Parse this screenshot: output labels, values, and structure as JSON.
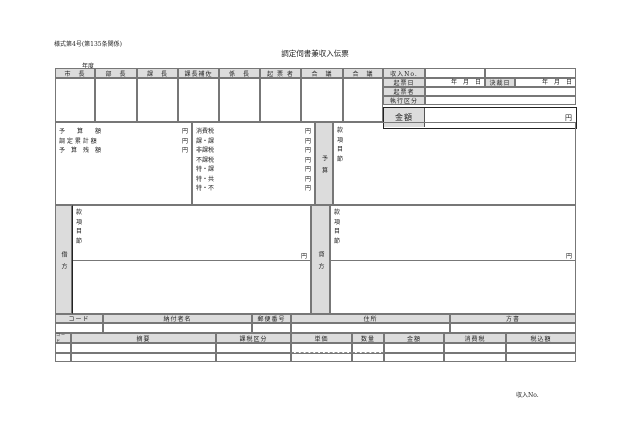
{
  "form_number": "様式第4号(第135条関係)",
  "title": "調定伺書兼収入伝票",
  "fiscal_year": "年度",
  "approvals": [
    "市　長",
    "部　長",
    "課　長",
    "課長補佐",
    "係　長",
    "起 票 者",
    "合　議",
    "合　議"
  ],
  "info": {
    "receipt_no": "収入No.",
    "draft_date": "起票日",
    "date_blank": "年　月　日",
    "decision_date": "決裁日",
    "drafter": "起票者",
    "execution_category": "執行区分",
    "amount": "金額",
    "yen": "円"
  },
  "budget": {
    "labels": [
      "予　　算　　額",
      "調 定 累 計 額",
      "予　算　残　額"
    ],
    "tax_labels": [
      "消費税",
      "課・課",
      "非課税",
      "不課税",
      "特・課",
      "特・共",
      "特・不"
    ],
    "side": "予　算",
    "account": "款\n項\n目\n節"
  },
  "debit": {
    "side": "借　方"
  },
  "credit": {
    "side": "貸　方"
  },
  "payer_headers": [
    "コード",
    "納付者名",
    "郵便番号",
    "住所",
    "方書"
  ],
  "detail_headers": [
    "コード",
    "摘要",
    "課税区分",
    "単価",
    "数量",
    "金額",
    "消費税",
    "税込額"
  ],
  "footer": {
    "receipt_no": "収入No."
  }
}
